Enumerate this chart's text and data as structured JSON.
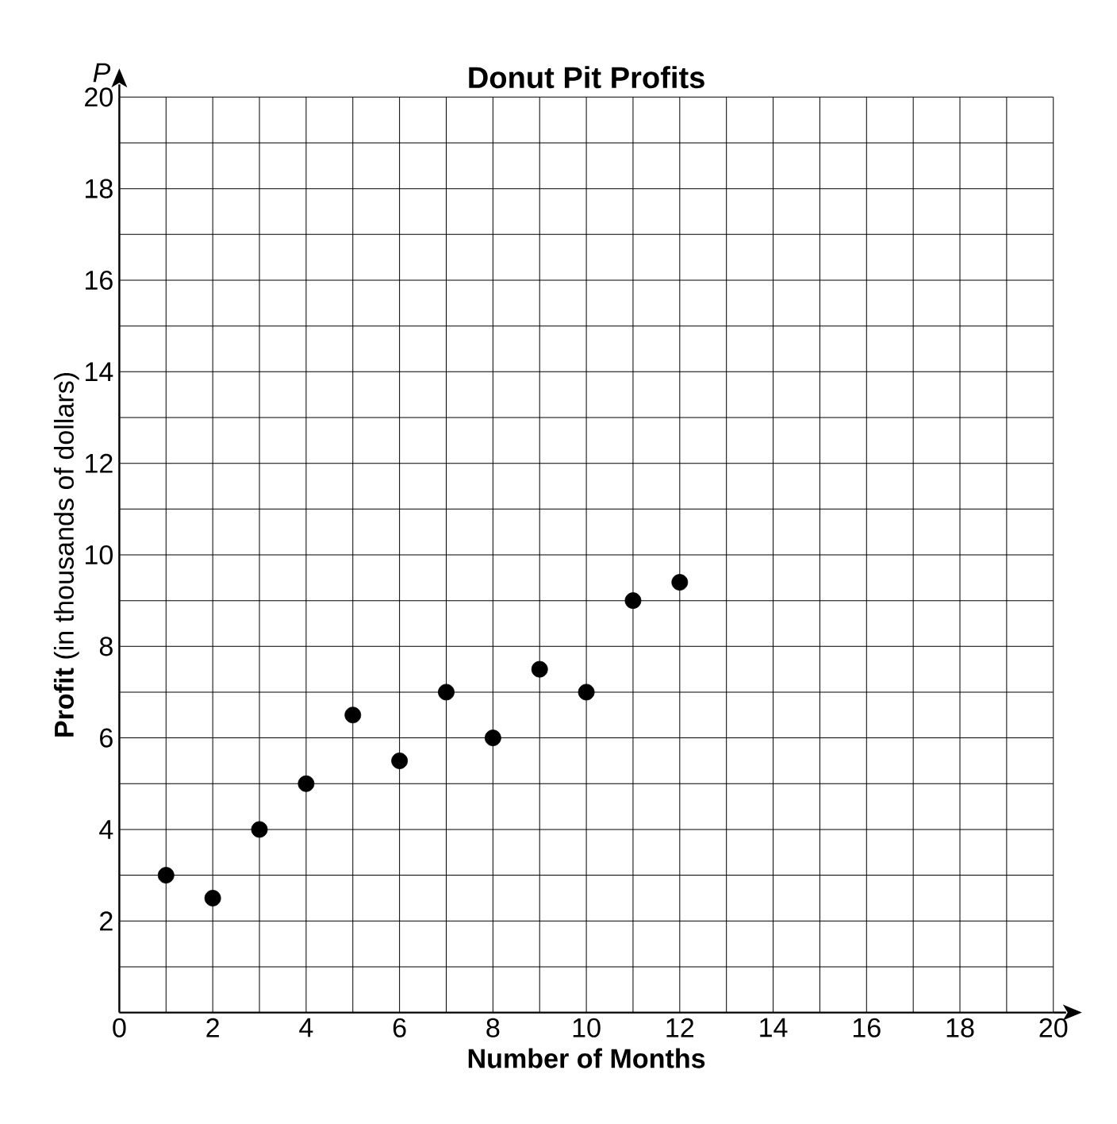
{
  "chart_data": {
    "type": "scatter",
    "title": "Donut Pit Profits",
    "xlabel": "Number of Months",
    "ylabel": "**Profit** (in thousands of dollars)",
    "annotations": [
      "*P*"
    ],
    "x": [
      1,
      2,
      3,
      4,
      5,
      6,
      7,
      8,
      9,
      10,
      11,
      12
    ],
    "values": [
      3,
      2.5,
      4,
      5,
      6.5,
      5.5,
      7,
      6,
      7.5,
      7,
      9,
      9.4
    ],
    "color": "#000000",
    "marker": "circle",
    "grid": true,
    "xlim": [
      0,
      20
    ],
    "ylim": [
      0,
      20
    ],
    "xticks": [
      0,
      {
        "value": 1,
        "label": null
      },
      2,
      {
        "value": 3,
        "label": null
      },
      4,
      {
        "value": 5,
        "label": null
      },
      6,
      {
        "value": 7,
        "label": null
      },
      8,
      {
        "value": 9,
        "label": null
      },
      10,
      {
        "value": 11,
        "label": null
      },
      12,
      {
        "value": 13,
        "label": null
      },
      14,
      {
        "value": 15,
        "label": null
      },
      16,
      {
        "value": 17,
        "label": null
      },
      18,
      {
        "value": 19,
        "label": null
      },
      20
    ],
    "yticks": [
      {
        "value": 1,
        "label": null
      },
      2,
      {
        "value": 3,
        "label": null
      },
      4,
      {
        "value": 5,
        "label": null
      },
      6,
      {
        "value": 7,
        "label": null
      },
      8,
      {
        "value": 9,
        "label": null
      },
      10,
      {
        "value": 11,
        "label": null
      },
      12,
      {
        "value": 13,
        "label": null
      },
      14,
      {
        "value": 15,
        "label": null
      },
      16,
      {
        "value": 17,
        "label": null
      },
      18,
      {
        "value": 19,
        "label": null
      },
      20
    ]
  }
}
